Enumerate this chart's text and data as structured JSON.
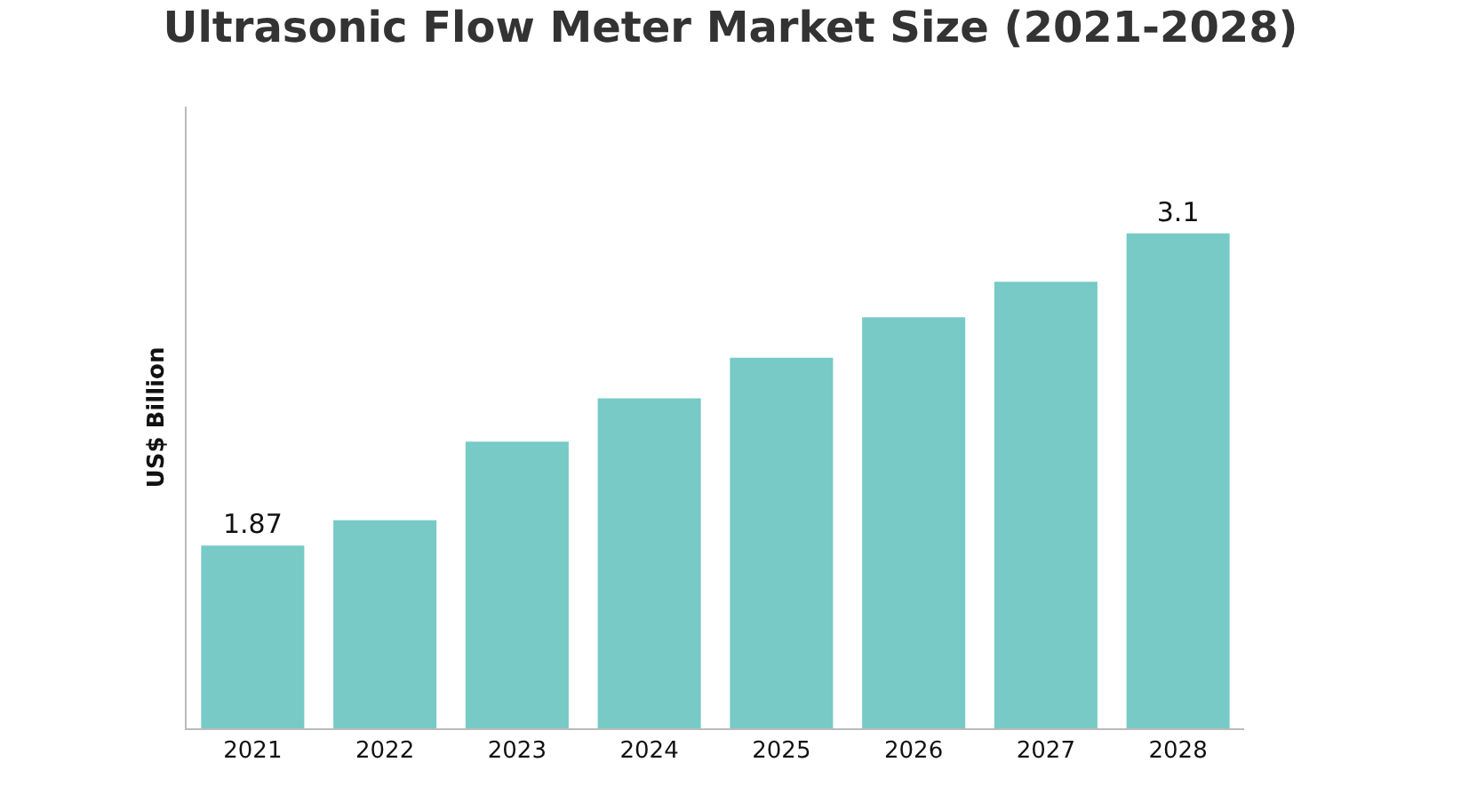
{
  "chart_data": {
    "type": "bar",
    "title": "Ultrasonic Flow Meter Market Size (2021-2028)",
    "ylabel": "US$ Billion",
    "categories": [
      "2021",
      "2022",
      "2023",
      "2024",
      "2025",
      "2026",
      "2027",
      "2028"
    ],
    "values": [
      1.87,
      1.97,
      2.28,
      2.45,
      2.61,
      2.77,
      2.91,
      3.1
    ],
    "value_labels": [
      "1.87",
      null,
      null,
      null,
      null,
      null,
      null,
      "3.1"
    ],
    "ylim": [
      1.15,
      3.6
    ],
    "tick_labels": "x",
    "color": "#77cac6"
  }
}
